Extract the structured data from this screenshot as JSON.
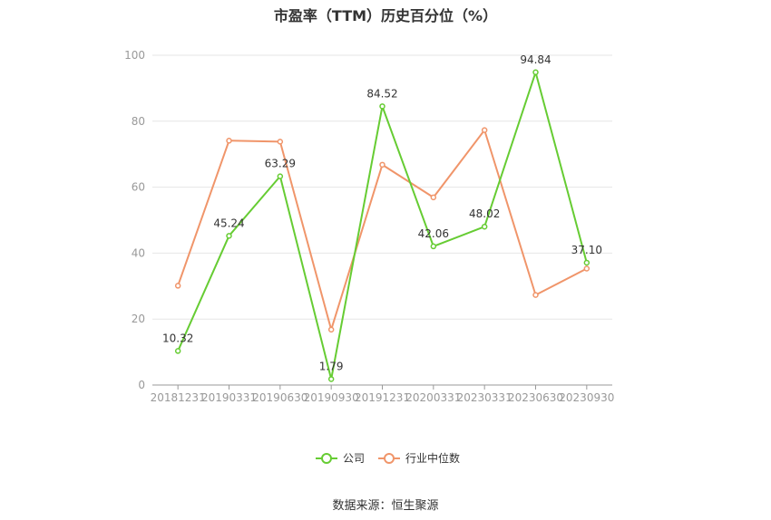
{
  "title": "市盈率（TTM）历史百分位（%）",
  "source": "数据来源：恒生聚源",
  "chart_data": {
    "type": "line",
    "categories": [
      "20181231",
      "20190331",
      "20190630",
      "20190930",
      "20191231",
      "20200331",
      "20230331",
      "20230630",
      "20230930"
    ],
    "ylim": [
      0,
      100
    ],
    "yticks": [
      0,
      20,
      40,
      60,
      80,
      100
    ],
    "grid": true,
    "legend_position": "bottom",
    "series": [
      {
        "name": "公司",
        "color": "#66cc33",
        "values": [
          10.32,
          45.24,
          63.29,
          1.79,
          84.52,
          42.06,
          48.02,
          94.84,
          37.1
        ],
        "labels": [
          "10.32",
          "45.24",
          "63.29",
          "1.79",
          "84.52",
          "42.06",
          "48.02",
          "94.84",
          "37.10"
        ]
      },
      {
        "name": "行业中位数",
        "color": "#f0956a",
        "values": [
          30.1,
          74.1,
          73.8,
          16.8,
          66.8,
          56.9,
          77.3,
          27.3,
          35.3
        ]
      }
    ]
  }
}
